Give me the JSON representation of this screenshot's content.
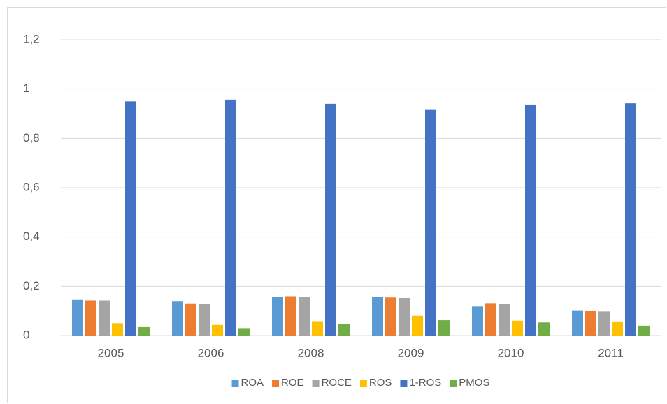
{
  "chart_data": {
    "type": "bar",
    "categories": [
      "2005",
      "2006",
      "2008",
      "2009",
      "2010",
      "2011"
    ],
    "series": [
      {
        "name": "ROA",
        "color": "#5b9bd5",
        "values": [
          0.145,
          0.138,
          0.157,
          0.158,
          0.118,
          0.103
        ]
      },
      {
        "name": "ROE",
        "color": "#ed7d31",
        "values": [
          0.143,
          0.131,
          0.16,
          0.155,
          0.132,
          0.1
        ]
      },
      {
        "name": "ROCE",
        "color": "#a5a5a5",
        "values": [
          0.143,
          0.13,
          0.158,
          0.153,
          0.13,
          0.098
        ]
      },
      {
        "name": "ROS",
        "color": "#ffc000",
        "values": [
          0.05,
          0.043,
          0.058,
          0.08,
          0.06,
          0.057
        ]
      },
      {
        "name": "1-ROS",
        "color": "#4472c4",
        "values": [
          0.95,
          0.957,
          0.94,
          0.918,
          0.937,
          0.942
        ]
      },
      {
        "name": "PMOS",
        "color": "#70ad47",
        "values": [
          0.037,
          0.03,
          0.047,
          0.062,
          0.053,
          0.04
        ]
      }
    ],
    "ylim": [
      0,
      1.2
    ],
    "yticks": [
      0,
      {
        "value": 0.2,
        "label": "0,2"
      },
      {
        "value": 0.4,
        "label": "0,4"
      },
      {
        "value": 0.6,
        "label": "0,6"
      },
      {
        "value": 0.8,
        "label": "0,8"
      },
      1,
      {
        "value": 1.2,
        "label": "1,2"
      }
    ],
    "grid": true,
    "legend": "bottom"
  }
}
